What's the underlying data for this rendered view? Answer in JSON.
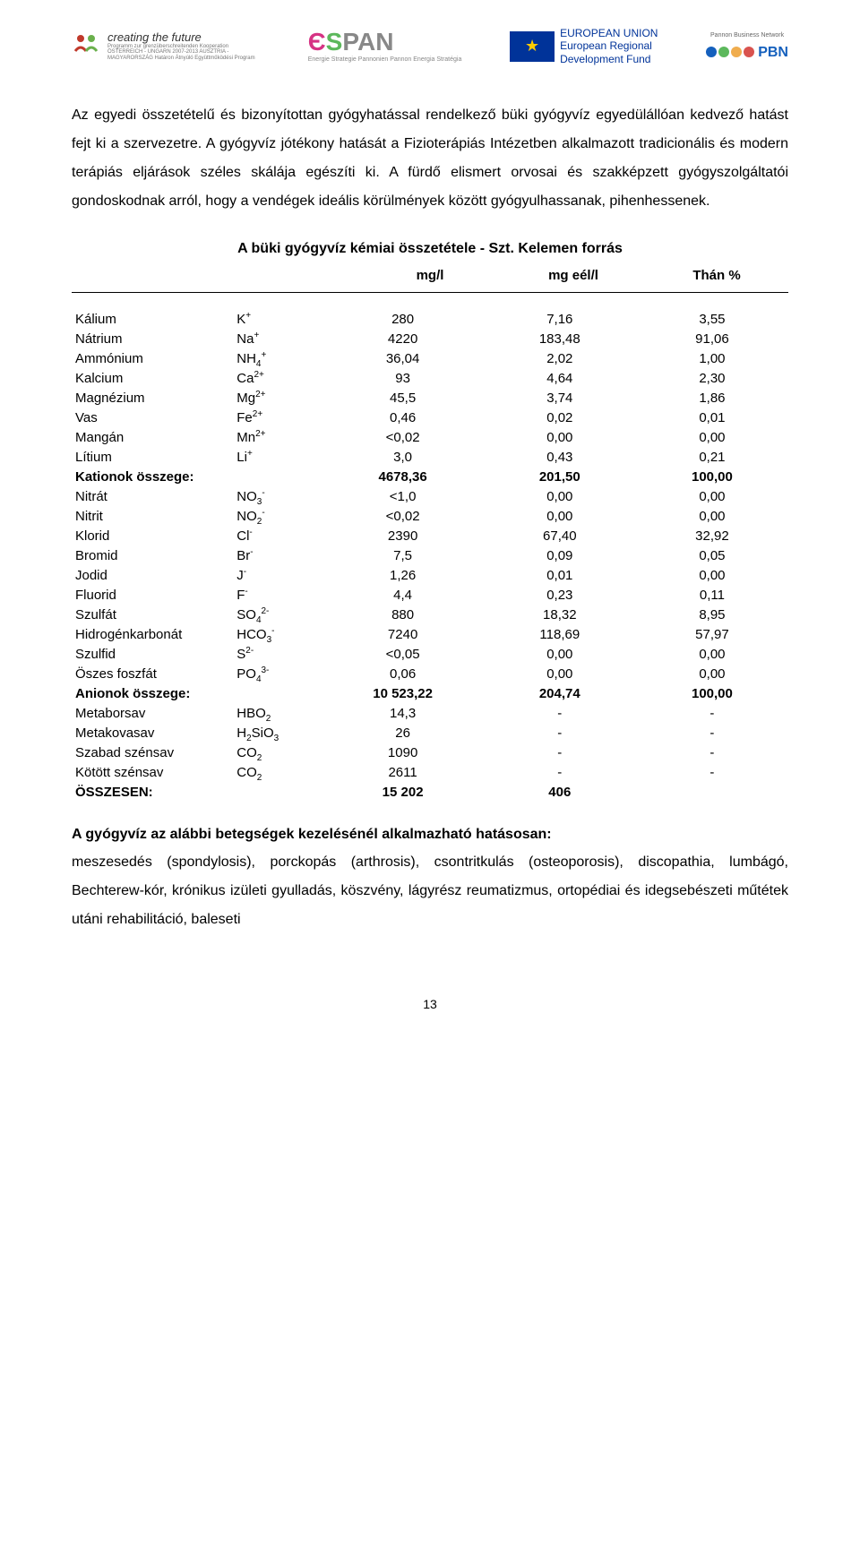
{
  "logos": {
    "ctf_title": "creating the future",
    "ctf_sub": "Programm zur grenzüberschreitenden Kooperation ÖSTERREICH - UNGARN 2007-2013\nAUSZTRIA - MAGYARORSZÁG Határon Átnyúló Együttműködési Program",
    "espan_sub": "Energie Strategie Pannonien\nPannon Energia Stratégia",
    "eu_line1": "EUROPEAN UNION",
    "eu_line2": "European Regional",
    "eu_line3": "Development Fund",
    "pbn_title": "Pannon Business Network",
    "pbn_short": "PBN"
  },
  "para1": "Az egyedi összetételű és bizonyítottan gyógyhatással rendelkező büki gyógyvíz egyedülállóan kedvező hatást fejt ki a szervezetre. A gyógyvíz jótékony hatását a Fizioterápiás Intézetben alkalmazott tradicionális és modern terápiás eljárások széles skálája egészíti ki. A fürdő elismert orvosai és szakképzett gyógyszolgáltatói gondoskodnak arról, hogy a vendégek ideális körülmények között gyógyulhassanak, pihenhessenek.",
  "table_title": "A büki gyógyvíz kémiai összetétele - Szt. Kelemen forrás",
  "units": {
    "c1": "mg/l",
    "c2": "mg eél/l",
    "c3": "Thán %"
  },
  "rows": [
    {
      "name": "Kálium",
      "sym": "K",
      "sup": "+",
      "v1": "280",
      "v2": "7,16",
      "v3": "3,55",
      "bold": false
    },
    {
      "name": "Nátrium",
      "sym": "Na",
      "sup": "+",
      "v1": "4220",
      "v2": "183,48",
      "v3": "91,06",
      "bold": false
    },
    {
      "name": "Ammónium",
      "sym": "NH",
      "sub": "4",
      "sup": "+",
      "v1": "36,04",
      "v2": "2,02",
      "v3": "1,00",
      "bold": false
    },
    {
      "name": "Kalcium",
      "sym": "Ca",
      "sup": "2+",
      "v1": "93",
      "v2": "4,64",
      "v3": "2,30",
      "bold": false
    },
    {
      "name": "Magnézium",
      "sym": "Mg",
      "sup": "2+",
      "v1": "45,5",
      "v2": "3,74",
      "v3": "1,86",
      "bold": false
    },
    {
      "name": "Vas",
      "sym": "Fe",
      "sup": "2+",
      "v1": "0,46",
      "v2": "0,02",
      "v3": "0,01",
      "bold": false
    },
    {
      "name": "Mangán",
      "sym": "Mn",
      "sup": "2+",
      "v1": "<0,02",
      "v2": "0,00",
      "v3": "0,00",
      "bold": false
    },
    {
      "name": "Lítium",
      "sym": "Li",
      "sup": "+",
      "v1": "3,0",
      "v2": "0,43",
      "v3": "0,21",
      "bold": false
    },
    {
      "name": "Kationok összege:",
      "sym": "",
      "v1": "4678,36",
      "v2": "201,50",
      "v3": "100,00",
      "bold": true
    },
    {
      "name": "Nitrát",
      "sym": "NO",
      "sub": "3",
      "sup": "-",
      "v1": "<1,0",
      "v2": "0,00",
      "v3": "0,00",
      "bold": false
    },
    {
      "name": "Nitrit",
      "sym": "NO",
      "sub": "2",
      "sup": "-",
      "v1": "<0,02",
      "v2": "0,00",
      "v3": "0,00",
      "bold": false
    },
    {
      "name": "Klorid",
      "sym": "Cl",
      "sup": "-",
      "v1": "2390",
      "v2": "67,40",
      "v3": "32,92",
      "bold": false
    },
    {
      "name": "Bromid",
      "sym": "Br",
      "sup": "-",
      "v1": "7,5",
      "v2": "0,09",
      "v3": "0,05",
      "bold": false
    },
    {
      "name": "Jodid",
      "sym": "J",
      "sup": "-",
      "v1": "1,26",
      "v2": "0,01",
      "v3": "0,00",
      "bold": false
    },
    {
      "name": "Fluorid",
      "sym": "F",
      "sup": "-",
      "v1": "4,4",
      "v2": "0,23",
      "v3": "0,11",
      "bold": false
    },
    {
      "name": "Szulfát",
      "sym": "SO",
      "sub": "4",
      "sup": "2-",
      "v1": "880",
      "v2": "18,32",
      "v3": "8,95",
      "bold": false
    },
    {
      "name": "Hidrogénkarbonát",
      "sym": "HCO",
      "sub": "3",
      "sup": "-",
      "v1": "7240",
      "v2": "118,69",
      "v3": "57,97",
      "bold": false
    },
    {
      "name": "Szulfid",
      "sym": "S",
      "sup": "2-",
      "v1": "<0,05",
      "v2": "0,00",
      "v3": "0,00",
      "bold": false
    },
    {
      "name": "Öszes foszfát",
      "sym": "PO",
      "sub": "4",
      "sup": "3-",
      "v1": "0,06",
      "v2": "0,00",
      "v3": "0,00",
      "bold": false
    },
    {
      "name": "Anionok összege:",
      "sym": "",
      "v1": "10 523,22",
      "v2": "204,74",
      "v3": "100,00",
      "bold": true
    },
    {
      "name": "Metaborsav",
      "sym": "HBO",
      "sub": "2",
      "v1": "14,3",
      "v2": "-",
      "v3": "-",
      "bold": false
    },
    {
      "name": "Metakovasav",
      "sym": "H",
      "sub2a": "2",
      "mid": "SiO",
      "sub2b": "3",
      "v1": "26",
      "v2": "-",
      "v3": "-",
      "bold": false
    },
    {
      "name": "Szabad szénsav",
      "sym": "CO",
      "sub": "2",
      "v1": "1090",
      "v2": "-",
      "v3": "-",
      "bold": false
    },
    {
      "name": "Kötött szénsav",
      "sym": "CO",
      "sub": "2",
      "v1": "2611",
      "v2": "-",
      "v3": "-",
      "bold": false
    },
    {
      "name": "ÖSSZESEN:",
      "sym": "",
      "v1": "15 202",
      "v2": "406",
      "v3": "",
      "bold": true
    }
  ],
  "after_heading": "A gyógyvíz az alábbi betegségek kezelésénél alkalmazható hatásosan:",
  "para2": "meszesedés (spondylosis), porckopás (arthrosis), csontritkulás (osteoporosis), discopathia, lumbágó, Bechterew-kór, krónikus izületi gyulladás, köszvény, lágyrész reumatizmus, ortopédiai és idegsebészeti műtétek utáni rehabilitáció, baleseti",
  "pagenum": "13",
  "colors": {
    "espan_e": "#d63384",
    "espan_s": "#5cb85c",
    "espan_rest": "#888888",
    "eu_blue": "#003399",
    "eu_yellow": "#ffcc00",
    "pbn_blue": "#1560bd",
    "pbn_green": "#5cb85c",
    "pbn_orange": "#f0ad4e",
    "pbn_red": "#d9534f"
  }
}
